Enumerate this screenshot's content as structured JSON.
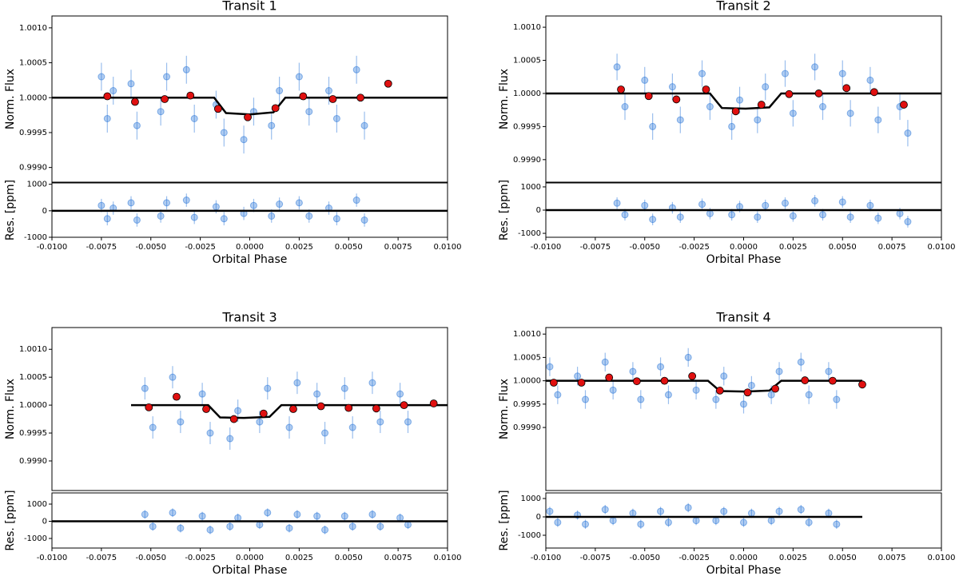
{
  "chart_data": [
    {
      "type": "scatter",
      "title": "Transit 1",
      "ylabel": "Norm. Flux",
      "xlim": [
        -0.01,
        0.01
      ],
      "ylim": [
        0.99879,
        1.00117
      ],
      "yticks": [
        {
          "value": 0.999,
          "label": "0.9990"
        },
        {
          "value": 0.9995,
          "label": "0.9995"
        },
        {
          "value": 1.0,
          "label": "1.0000"
        },
        {
          "value": 1.0005,
          "label": "1.0005"
        },
        {
          "value": 1.001,
          "label": "1.0010"
        }
      ],
      "series": [
        {
          "type": "scatter",
          "color": "#1f6fd6",
          "error": 0.0002,
          "x": [
            -0.0075,
            -0.0072,
            -0.0069,
            -0.006,
            -0.0057,
            -0.0045,
            -0.0042,
            -0.0032,
            -0.0028,
            -0.0017,
            -0.0013,
            -0.0003,
            0.0002,
            0.0011,
            0.0015,
            0.0025,
            0.003,
            0.004,
            0.0044,
            0.0054,
            0.0058
          ],
          "values": [
            1.0003,
            0.9997,
            1.0001,
            1.0002,
            0.9996,
            0.9998,
            1.0003,
            1.0004,
            0.9997,
            0.9999,
            0.9995,
            0.9994,
            0.9998,
            0.9996,
            1.0001,
            1.0003,
            0.9998,
            1.0001,
            0.9997,
            1.0004,
            0.9996
          ]
        },
        {
          "type": "line",
          "color": "#000000",
          "x": [
            -0.01,
            -0.0018,
            -0.0012,
            0,
            0.0012,
            0.0018,
            0.01
          ],
          "values": [
            1,
            1,
            0.99978,
            0.99976,
            0.99979,
            1,
            1
          ]
        },
        {
          "type": "binned",
          "color": "#e01010",
          "x": [
            -0.0072,
            -0.0058,
            -0.0043,
            -0.003,
            -0.0016,
            -0.0001,
            0.0013,
            0.0027,
            0.0042,
            0.0056,
            0.007
          ],
          "values": [
            1.00002,
            0.99994,
            0.99998,
            1.00003,
            0.99984,
            0.99972,
            0.99985,
            1.00002,
            0.99998,
            1.0,
            1.0002
          ]
        }
      ]
    },
    {
      "type": "scatter",
      "ylabel": "Res. [ppm]",
      "xlabel": "Orbital Phase",
      "xlim": [
        -0.01,
        0.01
      ],
      "ylim": [
        -1000,
        1050
      ],
      "yticks": [
        -1000,
        0,
        1000
      ],
      "xticks": [
        {
          "value": -0.01,
          "label": "-0.0100"
        },
        {
          "value": -0.0075,
          "label": "-0.0075"
        },
        {
          "value": -0.005,
          "label": "-0.0050"
        },
        {
          "value": -0.0025,
          "label": "-0.0025"
        },
        {
          "value": 0,
          "label": "0.0000"
        },
        {
          "value": 0.0025,
          "label": "0.0025"
        },
        {
          "value": 0.005,
          "label": "0.0050"
        },
        {
          "value": 0.0075,
          "label": "0.0075"
        },
        {
          "value": 0.01,
          "label": "0.0100"
        }
      ],
      "series": [
        {
          "type": "scatter",
          "color": "#1f6fd6",
          "error": 250,
          "x": [
            -0.0075,
            -0.0072,
            -0.0069,
            -0.006,
            -0.0057,
            -0.0045,
            -0.0042,
            -0.0032,
            -0.0028,
            -0.0017,
            -0.0013,
            -0.0003,
            0.0002,
            0.0011,
            0.0015,
            0.0025,
            0.003,
            0.004,
            0.0044,
            0.0054,
            0.0058
          ],
          "values": [
            200,
            -300,
            100,
            300,
            -350,
            -200,
            300,
            400,
            -250,
            150,
            -300,
            -100,
            200,
            -200,
            250,
            300,
            -200,
            100,
            -300,
            400,
            -350
          ]
        },
        {
          "type": "line",
          "color": "#000000",
          "x": [
            -0.01,
            0.01
          ],
          "values": [
            0,
            0
          ]
        }
      ]
    },
    {
      "type": "scatter",
      "title": "Transit 2",
      "ylabel": "Norm. Flux",
      "xlim": [
        -0.01,
        0.01
      ],
      "ylim": [
        0.99866,
        1.00117
      ],
      "yticks": [
        {
          "value": 0.999,
          "label": "0.9990"
        },
        {
          "value": 0.9995,
          "label": "0.9995"
        },
        {
          "value": 1.0,
          "label": "1.0000"
        },
        {
          "value": 1.0005,
          "label": "1.0005"
        },
        {
          "value": 1.001,
          "label": "1.0010"
        }
      ],
      "series": [
        {
          "type": "scatter",
          "color": "#1f6fd6",
          "error": 0.0002,
          "x": [
            -0.0064,
            -0.006,
            -0.005,
            -0.0046,
            -0.0036,
            -0.0032,
            -0.0021,
            -0.0017,
            -0.0006,
            -0.0002,
            0.0007,
            0.0011,
            0.0021,
            0.0025,
            0.0036,
            0.004,
            0.005,
            0.0054,
            0.0064,
            0.0068,
            0.0079,
            0.0083
          ],
          "values": [
            1.0004,
            0.9998,
            1.0002,
            0.9995,
            1.0001,
            0.9996,
            1.0003,
            0.9998,
            0.9995,
            0.9999,
            0.9996,
            1.0001,
            1.0003,
            0.9997,
            1.0004,
            0.9998,
            1.0003,
            0.9997,
            1.0002,
            0.9996,
            0.9998,
            0.9994
          ]
        },
        {
          "type": "line",
          "color": "#000000",
          "x": [
            -0.01,
            -0.0017,
            -0.0011,
            0.0001,
            0.0013,
            0.0019,
            0.01
          ],
          "values": [
            1,
            1,
            0.99978,
            0.99977,
            0.99979,
            1,
            1
          ]
        },
        {
          "type": "binned",
          "color": "#e01010",
          "x": [
            -0.0062,
            -0.0048,
            -0.0034,
            -0.0019,
            -0.0004,
            0.0009,
            0.0023,
            0.0038,
            0.0052,
            0.0066,
            0.0081
          ],
          "values": [
            1.00006,
            0.99996,
            0.99991,
            1.00006,
            0.99973,
            0.99983,
            0.99999,
            1.0,
            1.00008,
            1.00002,
            0.99983
          ]
        }
      ]
    },
    {
      "type": "scatter",
      "ylabel": "Res. [ppm]",
      "xlabel": "Orbital Phase",
      "xlim": [
        -0.01,
        0.01
      ],
      "ylim": [
        -1170,
        1170
      ],
      "yticks": [
        -1000,
        0,
        1000
      ],
      "xticks": [
        {
          "value": -0.01,
          "label": "-0.0100"
        },
        {
          "value": -0.0075,
          "label": "-0.0075"
        },
        {
          "value": -0.005,
          "label": "-0.0050"
        },
        {
          "value": -0.0025,
          "label": "-0.0025"
        },
        {
          "value": 0,
          "label": "0.0000"
        },
        {
          "value": 0.0025,
          "label": "0.0025"
        },
        {
          "value": 0.005,
          "label": "0.0050"
        },
        {
          "value": 0.0075,
          "label": "0.0075"
        },
        {
          "value": 0.01,
          "label": "0.0100"
        }
      ],
      "series": [
        {
          "type": "scatter",
          "color": "#1f6fd6",
          "error": 250,
          "x": [
            -0.0064,
            -0.006,
            -0.005,
            -0.0046,
            -0.0036,
            -0.0032,
            -0.0021,
            -0.0017,
            -0.0006,
            -0.0002,
            0.0007,
            0.0011,
            0.0021,
            0.0025,
            0.0036,
            0.004,
            0.005,
            0.0054,
            0.0064,
            0.0068,
            0.0079,
            0.0083
          ],
          "values": [
            300,
            -200,
            200,
            -400,
            100,
            -300,
            250,
            -150,
            -200,
            150,
            -300,
            200,
            300,
            -250,
            400,
            -200,
            350,
            -300,
            200,
            -350,
            -150,
            -500
          ]
        },
        {
          "type": "line",
          "color": "#000000",
          "x": [
            -0.01,
            0.01
          ],
          "values": [
            0,
            0
          ]
        }
      ]
    },
    {
      "type": "scatter",
      "title": "Transit 3",
      "ylabel": "Norm. Flux",
      "xlim": [
        -0.01,
        0.01
      ],
      "ylim": [
        0.99847,
        1.00139
      ],
      "yticks": [
        {
          "value": 0.999,
          "label": "0.9990"
        },
        {
          "value": 0.9995,
          "label": "0.9995"
        },
        {
          "value": 1.0,
          "label": "1.0000"
        },
        {
          "value": 1.0005,
          "label": "1.0005"
        },
        {
          "value": 1.001,
          "label": "1.0010"
        }
      ],
      "series": [
        {
          "type": "scatter",
          "color": "#1f6fd6",
          "error": 0.0002,
          "x": [
            -0.0053,
            -0.0049,
            -0.0039,
            -0.0035,
            -0.0024,
            -0.002,
            -0.001,
            -0.0006,
            0.0005,
            0.0009,
            0.002,
            0.0024,
            0.0034,
            0.0038,
            0.0048,
            0.0052,
            0.0062,
            0.0066,
            0.0076,
            0.008
          ],
          "values": [
            1.0003,
            0.9996,
            1.0005,
            0.9997,
            1.0002,
            0.9995,
            0.9994,
            0.9999,
            0.9997,
            1.0003,
            0.9996,
            1.0004,
            1.0002,
            0.9995,
            1.0003,
            0.9996,
            1.0004,
            0.9997,
            1.0002,
            0.9997
          ]
        },
        {
          "type": "line",
          "color": "#000000",
          "x": [
            -0.006,
            -0.0021,
            -0.0015,
            -0.0003,
            0.001,
            0.0016,
            0.01
          ],
          "values": [
            1,
            1,
            0.99978,
            0.99977,
            0.99979,
            1,
            1
          ]
        },
        {
          "type": "binned",
          "color": "#e01010",
          "x": [
            -0.0051,
            -0.0037,
            -0.0022,
            -0.0008,
            0.0007,
            0.0022,
            0.0036,
            0.005,
            0.0064,
            0.0078,
            0.0093
          ],
          "values": [
            0.99996,
            1.00015,
            0.99993,
            0.99975,
            0.99985,
            0.99993,
            0.99998,
            0.99995,
            0.99994,
            1.0,
            1.00003
          ]
        }
      ]
    },
    {
      "type": "scatter",
      "ylabel": "Res. [ppm]",
      "xlabel": "Orbital Phase",
      "xlim": [
        -0.01,
        0.01
      ],
      "ylim": [
        -1558,
        1651
      ],
      "yticks": [
        -1000,
        0,
        1000
      ],
      "xticks": [
        {
          "value": -0.01,
          "label": "-0.0100"
        },
        {
          "value": -0.0075,
          "label": "-0.0075"
        },
        {
          "value": -0.005,
          "label": "-0.0050"
        },
        {
          "value": -0.0025,
          "label": "-0.0025"
        },
        {
          "value": 0,
          "label": "0.0000"
        },
        {
          "value": 0.0025,
          "label": "0.0025"
        },
        {
          "value": 0.005,
          "label": "0.0050"
        },
        {
          "value": 0.0075,
          "label": "0.0075"
        },
        {
          "value": 0.01,
          "label": "0.0100"
        }
      ],
      "series": [
        {
          "type": "scatter",
          "color": "#1f6fd6",
          "error": 250,
          "x": [
            -0.0053,
            -0.0049,
            -0.0039,
            -0.0035,
            -0.0024,
            -0.002,
            -0.001,
            -0.0006,
            0.0005,
            0.0009,
            0.002,
            0.0024,
            0.0034,
            0.0038,
            0.0048,
            0.0052,
            0.0062,
            0.0066,
            0.0076,
            0.008
          ],
          "values": [
            400,
            -300,
            500,
            -400,
            300,
            -500,
            -300,
            200,
            -200,
            500,
            -400,
            400,
            300,
            -500,
            300,
            -300,
            400,
            -300,
            200,
            -200
          ]
        },
        {
          "type": "line",
          "color": "#000000",
          "x": [
            -0.01,
            0.01
          ],
          "values": [
            0,
            0
          ]
        }
      ]
    },
    {
      "type": "scatter",
      "title": "Transit 4",
      "ylabel": "Norm. Flux",
      "xlim": [
        -0.01,
        0.01
      ],
      "ylim": [
        0.99765,
        1.00114
      ],
      "yticks": [
        {
          "value": 0.999,
          "label": "0.9990"
        },
        {
          "value": 0.9995,
          "label": "0.9995"
        },
        {
          "value": 1.0,
          "label": "1.0000"
        },
        {
          "value": 1.0005,
          "label": "1.0005"
        },
        {
          "value": 1.001,
          "label": "1.0010"
        }
      ],
      "series": [
        {
          "type": "scatter",
          "color": "#1f6fd6",
          "error": 0.0002,
          "x": [
            -0.0098,
            -0.0094,
            -0.0084,
            -0.008,
            -0.007,
            -0.0066,
            -0.0056,
            -0.0052,
            -0.0042,
            -0.0038,
            -0.0028,
            -0.0024,
            -0.0014,
            -0.001,
            0.0,
            0.0004,
            0.0014,
            0.0018,
            0.0029,
            0.0033,
            0.0043,
            0.0047
          ],
          "values": [
            1.0003,
            0.9997,
            1.0001,
            0.9996,
            1.0004,
            0.9998,
            1.0002,
            0.9996,
            1.0003,
            0.9997,
            1.0005,
            0.9998,
            0.9996,
            1.0001,
            0.9995,
            0.9999,
            0.9997,
            1.0002,
            1.0004,
            0.9997,
            1.0002,
            0.9996
          ]
        },
        {
          "type": "line",
          "color": "#000000",
          "x": [
            -0.01,
            -0.0018,
            -0.0012,
            0.0001,
            0.0013,
            0.0019,
            0.006
          ],
          "values": [
            1,
            1,
            0.99978,
            0.99977,
            0.99979,
            1,
            1
          ]
        },
        {
          "type": "binned",
          "color": "#e01010",
          "x": [
            -0.0096,
            -0.0082,
            -0.0068,
            -0.0054,
            -0.004,
            -0.0026,
            -0.0012,
            0.0002,
            0.0016,
            0.0031,
            0.0045,
            0.006
          ],
          "values": [
            0.99996,
            0.99996,
            1.00007,
            0.99999,
            1.0,
            1.0001,
            0.99979,
            0.99975,
            0.99983,
            1.00001,
            1.0,
            0.99992
          ]
        }
      ]
    },
    {
      "type": "scatter",
      "ylabel": "Res. [ppm]",
      "xlabel": "Orbital Phase",
      "xlim": [
        -0.01,
        0.01
      ],
      "ylim": [
        -1696,
        1304
      ],
      "yticks": [
        -1000,
        0,
        1000
      ],
      "xticks": [
        {
          "value": -0.01,
          "label": "-0.0100"
        },
        {
          "value": -0.0075,
          "label": "-0.0075"
        },
        {
          "value": -0.005,
          "label": "-0.0050"
        },
        {
          "value": -0.0025,
          "label": "-0.0025"
        },
        {
          "value": 0,
          "label": "0.0000"
        },
        {
          "value": 0.0025,
          "label": "0.0025"
        },
        {
          "value": 0.005,
          "label": "0.0050"
        },
        {
          "value": 0.0075,
          "label": "0.0075"
        },
        {
          "value": 0.01,
          "label": "0.0100"
        }
      ],
      "series": [
        {
          "type": "scatter",
          "color": "#1f6fd6",
          "error": 250,
          "x": [
            -0.0098,
            -0.0094,
            -0.0084,
            -0.008,
            -0.007,
            -0.0066,
            -0.0056,
            -0.0052,
            -0.0042,
            -0.0038,
            -0.0028,
            -0.0024,
            -0.0014,
            -0.001,
            0.0,
            0.0004,
            0.0014,
            0.0018,
            0.0029,
            0.0033,
            0.0043,
            0.0047
          ],
          "values": [
            300,
            -300,
            100,
            -400,
            400,
            -200,
            200,
            -400,
            300,
            -300,
            500,
            -200,
            -200,
            300,
            -300,
            200,
            -200,
            300,
            400,
            -300,
            200,
            -400
          ]
        },
        {
          "type": "line",
          "color": "#000000",
          "x": [
            -0.01,
            0.006
          ],
          "values": [
            0,
            0
          ]
        }
      ]
    }
  ]
}
